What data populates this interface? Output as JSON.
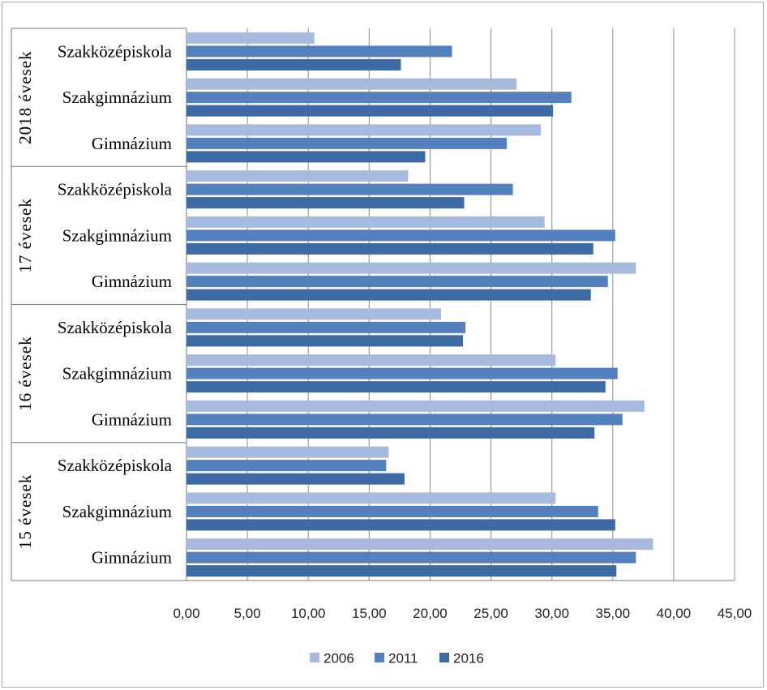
{
  "chart_data": {
    "type": "bar",
    "orientation": "horizontal",
    "grid": true,
    "legend_position": "bottom",
    "xlim": [
      0,
      45
    ],
    "x_ticks": [
      "0,00",
      "5,00",
      "10,00",
      "15,00",
      "20,00",
      "25,00",
      "30,00",
      "35,00",
      "40,00",
      "45,00"
    ],
    "groups": [
      {
        "label": "2018 évesek",
        "categories": [
          "Szakközépiskola",
          "Szakgimnázium",
          "Gimnázium"
        ]
      },
      {
        "label": "17 évesek",
        "categories": [
          "Szakközépiskola",
          "Szakgimnázium",
          "Gimnázium"
        ]
      },
      {
        "label": "16 évesek",
        "categories": [
          "Szakközépiskola",
          "Szakgimnázium",
          "Gimnázium"
        ]
      },
      {
        "label": "15 évesek",
        "categories": [
          "Szakközépiskola",
          "Szakgimnázium",
          "Gimnázium"
        ]
      }
    ],
    "series": [
      {
        "name": "2006",
        "color": "#a7b9dc",
        "values": [
          10.5,
          27.1,
          29.1,
          18.2,
          29.4,
          36.9,
          20.9,
          30.3,
          37.6,
          16.6,
          30.3,
          38.3
        ]
      },
      {
        "name": "2011",
        "color": "#5580be",
        "values": [
          21.8,
          31.6,
          26.3,
          26.8,
          35.2,
          34.6,
          22.9,
          35.4,
          35.8,
          16.4,
          33.8,
          36.9
        ]
      },
      {
        "name": "2016",
        "color": "#3e6aa4",
        "values": [
          17.6,
          30.1,
          19.6,
          22.8,
          33.4,
          33.2,
          22.7,
          34.4,
          33.5,
          17.9,
          35.2,
          35.3
        ]
      }
    ]
  }
}
